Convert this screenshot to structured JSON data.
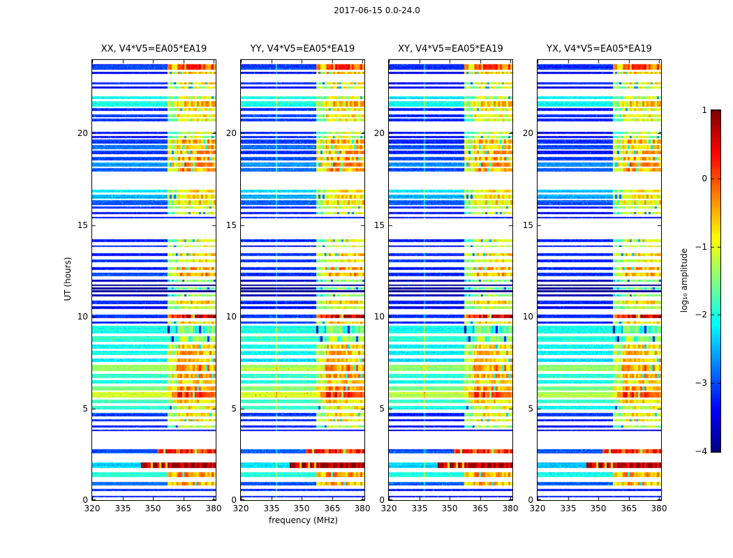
{
  "figure": {
    "colorbar_label_display": "log₁₀ amplitude"
  },
  "chart_data": {
    "type": "heatmap",
    "title": "2017-06-15 0.0-24.0",
    "xlabel": "frequency (MHz)",
    "ylabel": "UT (hours)",
    "x_range": [
      320,
      381
    ],
    "y_range": [
      0,
      24
    ],
    "x_ticks": [
      320,
      335,
      350,
      365,
      380
    ],
    "y_ticks": [
      0,
      5,
      10,
      15,
      20
    ],
    "panels": [
      {
        "key": "xx",
        "title": "XX, V4*V5=EA05*EA19"
      },
      {
        "key": "yy",
        "title": "YY, V4*V5=EA05*EA19"
      },
      {
        "key": "xy",
        "title": "XY, V4*V5=EA05*EA19"
      },
      {
        "key": "yx",
        "title": "YX, V4*V5=EA05*EA19"
      }
    ],
    "colorbar": {
      "label": "log10 amplitude",
      "range": [
        -4,
        1
      ],
      "ticks": [
        1,
        0,
        -1,
        -2,
        -3,
        -4
      ],
      "colormap": "jet"
    },
    "rfi_band_mhz": [
      357,
      381
    ],
    "scans_format": "[ut_center_hours, duration_hours, base_log10_amplitude, rfi_log10_amplitude_or_null, optional_rfi_start_mhz]",
    "scans": [
      [
        23.62,
        0.3,
        -3.1,
        0.0
      ],
      [
        23.3,
        0.1,
        -3.4,
        -0.6
      ],
      [
        22.72,
        0.14,
        -3.2,
        -0.8
      ],
      [
        22.5,
        0.1,
        -3.4,
        -1.0
      ],
      [
        21.95,
        0.18,
        -2.1,
        -1.0
      ],
      [
        21.62,
        0.3,
        -2.0,
        -0.7
      ],
      [
        21.3,
        0.12,
        -3.2,
        -0.9
      ],
      [
        20.95,
        0.16,
        -3.1,
        -0.8
      ],
      [
        20.72,
        0.14,
        -3.2,
        -0.9
      ],
      [
        20.02,
        0.1,
        -3.3,
        -1.1
      ],
      [
        19.8,
        0.1,
        -3.3,
        -1.1
      ],
      [
        19.55,
        0.22,
        -3.1,
        -0.5
      ],
      [
        19.25,
        0.25,
        -2.9,
        -0.5
      ],
      [
        18.95,
        0.2,
        -3.2,
        -0.6
      ],
      [
        18.62,
        0.18,
        -3.0,
        -0.4
      ],
      [
        18.3,
        0.22,
        -2.6,
        -0.2
      ],
      [
        18.02,
        0.18,
        -2.9,
        -0.3
      ],
      [
        16.85,
        0.18,
        -2.3,
        -0.9
      ],
      [
        16.55,
        0.22,
        -2.5,
        -0.7
      ],
      [
        16.22,
        0.25,
        -2.9,
        -0.8
      ],
      [
        15.95,
        0.12,
        -3.2,
        -1.0
      ],
      [
        15.65,
        0.1,
        -3.3,
        -1.2
      ],
      [
        15.42,
        0.08,
        -3.4,
        null
      ],
      [
        14.15,
        0.14,
        -3.2,
        -0.9
      ],
      [
        13.85,
        0.1,
        -3.3,
        -1.0
      ],
      [
        13.38,
        0.14,
        -3.2,
        -0.8
      ],
      [
        13.05,
        0.14,
        -3.1,
        -0.8
      ],
      [
        12.62,
        0.14,
        -3.2,
        -0.5
      ],
      [
        12.3,
        0.18,
        -3.1,
        -0.4
      ],
      [
        11.95,
        0.12,
        -3.7,
        -1.4
      ],
      [
        11.72,
        0.1,
        -3.9,
        null
      ],
      [
        11.55,
        0.1,
        -3.9,
        -1.6
      ],
      [
        11.38,
        0.1,
        -3.9,
        null
      ],
      [
        11.15,
        0.12,
        -3.7,
        -1.4
      ],
      [
        10.78,
        0.18,
        -3.2,
        -0.8
      ],
      [
        10.5,
        0.14,
        -3.4,
        -1.0
      ],
      [
        10.02,
        0.22,
        -3.1,
        0.4
      ],
      [
        9.68,
        0.14,
        -3.2,
        -0.7
      ],
      [
        9.3,
        0.4,
        -2.0,
        -1.7
      ],
      [
        8.78,
        0.32,
        -1.9,
        -1.5
      ],
      [
        8.38,
        0.22,
        -2.1,
        -0.7
      ],
      [
        8.02,
        0.22,
        -2.1,
        -0.6
      ],
      [
        7.62,
        0.18,
        -2.2,
        -0.5
      ],
      [
        7.22,
        0.35,
        -1.3,
        -0.3
      ],
      [
        6.78,
        0.22,
        -1.9,
        -0.5
      ],
      [
        6.45,
        0.18,
        -2.0,
        -0.7
      ],
      [
        6.1,
        0.22,
        -1.5,
        -0.4
      ],
      [
        5.75,
        0.28,
        -1.1,
        0.1
      ],
      [
        5.38,
        0.18,
        -1.8,
        -0.6
      ],
      [
        5.05,
        0.18,
        -2.0,
        -0.9
      ],
      [
        4.65,
        0.18,
        -3.1,
        -0.7
      ],
      [
        4.35,
        0.14,
        -3.2,
        -0.8
      ],
      [
        4.02,
        0.1,
        -3.3,
        -1.1
      ],
      [
        3.8,
        0.08,
        -3.4,
        null
      ],
      [
        2.65,
        0.22,
        -2.9,
        0.3,
        352
      ],
      [
        1.9,
        0.3,
        -2.3,
        0.9,
        344
      ],
      [
        1.38,
        0.28,
        -2.0,
        -0.3
      ],
      [
        0.88,
        0.18,
        -2.9,
        -0.5
      ],
      [
        0.55,
        0.12,
        -3.2,
        null
      ],
      [
        0.2,
        0.08,
        -3.3,
        null
      ]
    ]
  }
}
